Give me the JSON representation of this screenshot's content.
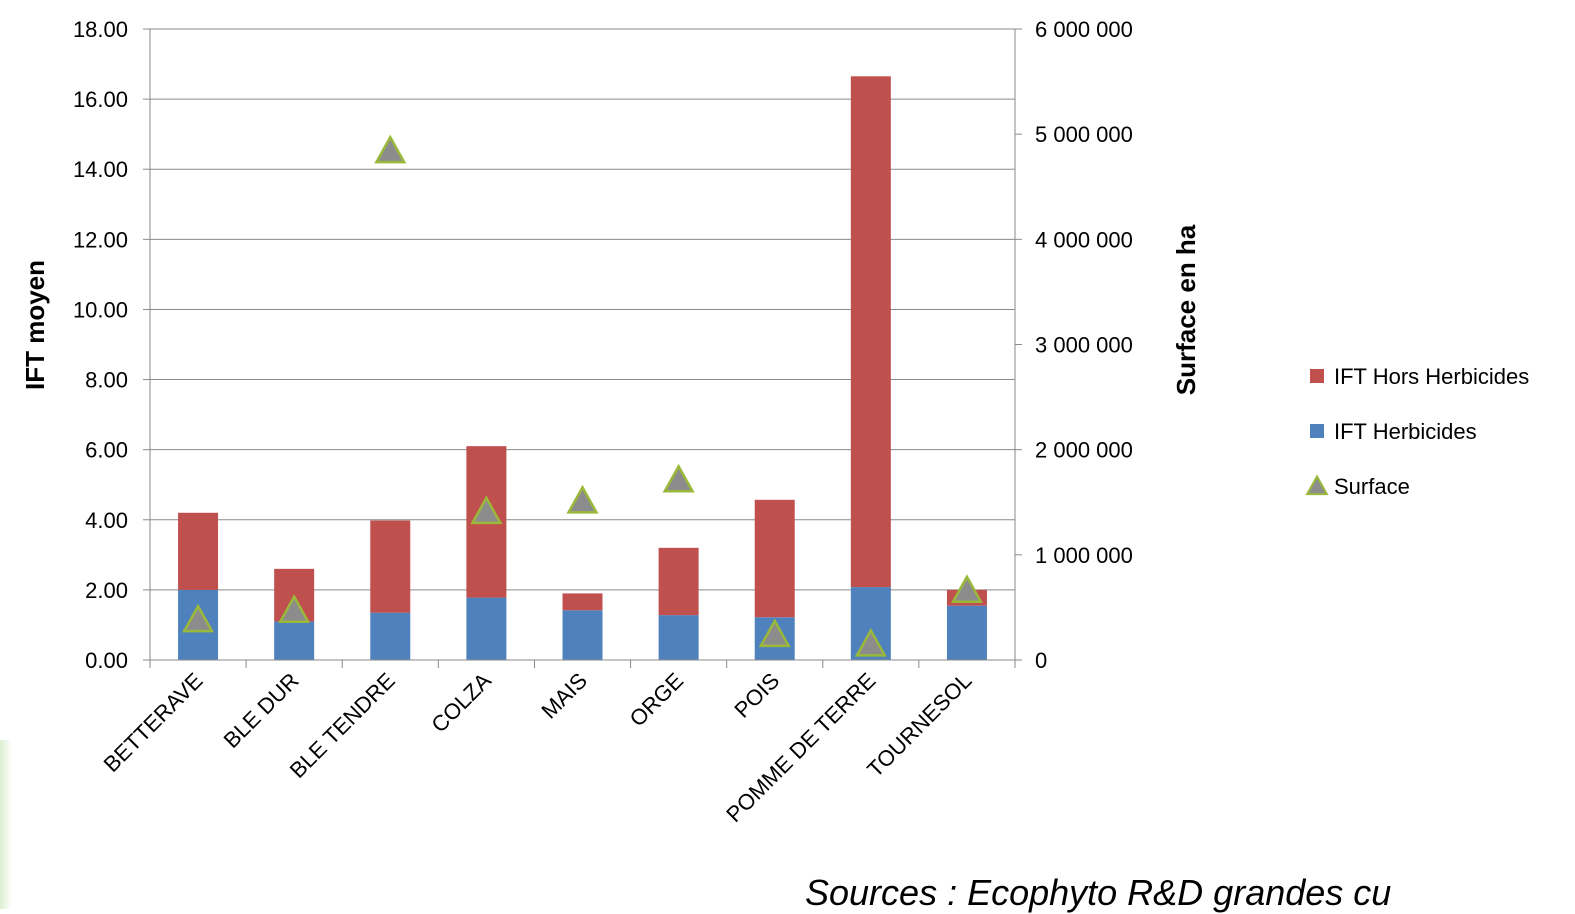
{
  "chart_data": {
    "type": "bar",
    "stacked": true,
    "categories": [
      "BETTERAVE",
      "BLE DUR",
      "BLE TENDRE",
      "COLZA",
      "MAIS",
      "ORGE",
      "POIS",
      "POMME DE TERRE",
      "TOURNESOL"
    ],
    "series": [
      {
        "name": "IFT Herbicides",
        "axis": "left",
        "kind": "bar",
        "color": "#4f81bd",
        "values": [
          2.0,
          1.1,
          1.35,
          1.78,
          1.42,
          1.28,
          1.22,
          2.08,
          1.55
        ]
      },
      {
        "name": "IFT Hors Herbicides",
        "axis": "left",
        "kind": "bar",
        "color": "#c0504d",
        "values": [
          2.2,
          1.5,
          2.63,
          4.32,
          0.48,
          1.92,
          3.35,
          14.57,
          0.45
        ]
      },
      {
        "name": "Surface",
        "axis": "right",
        "kind": "marker",
        "color": "#9ab93a",
        "fill": "#8c8c8c",
        "values": [
          370000,
          460000,
          4830000,
          1400000,
          1500000,
          1700000,
          230000,
          140000,
          650000
        ]
      }
    ],
    "legend_order": [
      "IFT Hors Herbicides",
      "IFT Herbicides",
      "Surface"
    ],
    "ylabel": "IFT moyen",
    "y2label": "Surface en ha",
    "ylim": [
      0,
      18
    ],
    "yticks": [
      0,
      2,
      4,
      6,
      8,
      10,
      12,
      14,
      16,
      18
    ],
    "ytick_labels": [
      "0.00",
      "2.00",
      "4.00",
      "6.00",
      "8.00",
      "10.00",
      "12.00",
      "14.00",
      "16.00",
      "18.00"
    ],
    "y2lim": [
      0,
      6000000
    ],
    "y2ticks": [
      0,
      1000000,
      2000000,
      3000000,
      4000000,
      5000000,
      6000000
    ],
    "y2tick_labels": [
      "0",
      "1 000 000",
      "2 000 000",
      "3 000 000",
      "4 000 000",
      "5 000 000",
      "6 000 000"
    ],
    "grid": true,
    "legend_position": "right"
  },
  "source_note": "Sources : Ecophyto R&D grandes cu"
}
